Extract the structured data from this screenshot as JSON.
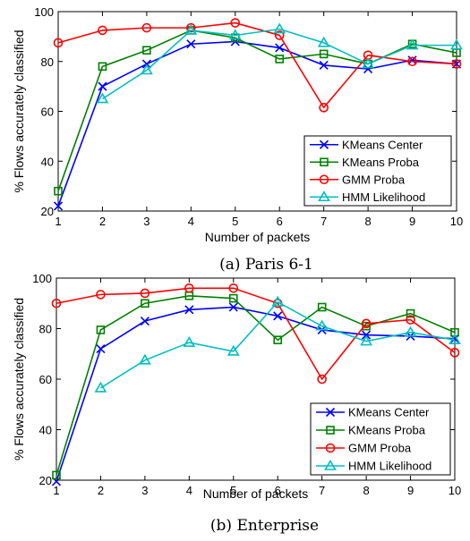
{
  "chart_data": [
    {
      "type": "line",
      "caption": "(a) Paris 6-1",
      "xlabel": "Number of packets",
      "ylabel": "% Flows accurately classified",
      "xlim": [
        1,
        10
      ],
      "ylim": [
        20,
        100
      ],
      "xticks": [
        1,
        2,
        3,
        4,
        5,
        6,
        7,
        8,
        9,
        10
      ],
      "yticks": [
        20,
        40,
        60,
        80,
        100
      ],
      "legend_position": "bottom-right",
      "series": [
        {
          "name": "KMeans Center",
          "color": "#0000ff",
          "marker": "x",
          "x": [
            1,
            2,
            3,
            4,
            5,
            6,
            7,
            8,
            9,
            10
          ],
          "values": [
            22,
            70,
            79,
            87,
            88,
            85.5,
            78.5,
            77,
            80.5,
            79
          ]
        },
        {
          "name": "KMeans Proba",
          "color": "#008000",
          "marker": "square",
          "x": [
            1,
            2,
            3,
            4,
            5,
            6,
            7,
            8,
            9,
            10
          ],
          "values": [
            28,
            78,
            84.5,
            92.5,
            89.5,
            81,
            83,
            79,
            87,
            83.5
          ]
        },
        {
          "name": "GMM Proba",
          "color": "#ff0000",
          "marker": "circle",
          "x": [
            1,
            2,
            3,
            4,
            5,
            6,
            7,
            8,
            9,
            10
          ],
          "values": [
            87.5,
            92.5,
            93.5,
            93.5,
            95.5,
            90.5,
            61.5,
            82.5,
            80,
            79
          ]
        },
        {
          "name": "HMM Likelihood",
          "color": "#00bfbf",
          "marker": "triangle",
          "x": [
            2,
            3,
            4,
            5,
            6,
            7,
            8,
            9,
            10
          ],
          "values": [
            65,
            76.5,
            92.5,
            90.5,
            93,
            87.5,
            79,
            86.5,
            86.5
          ]
        }
      ]
    },
    {
      "type": "line",
      "caption": "(b) Enterprise",
      "xlabel": "Number of packets",
      "ylabel": "% Flows accurately classified",
      "xlim": [
        1,
        10
      ],
      "ylim": [
        20,
        100
      ],
      "xticks": [
        1,
        2,
        3,
        4,
        5,
        6,
        7,
        8,
        9,
        10
      ],
      "yticks": [
        20,
        40,
        60,
        80,
        100
      ],
      "legend_position": "bottom-right",
      "series": [
        {
          "name": "KMeans Center",
          "color": "#0000ff",
          "marker": "x",
          "x": [
            1,
            2,
            3,
            4,
            5,
            6,
            7,
            8,
            9,
            10
          ],
          "values": [
            19.5,
            72,
            83,
            87.5,
            88.5,
            85,
            79.5,
            77.5,
            77,
            76
          ]
        },
        {
          "name": "KMeans Proba",
          "color": "#008000",
          "marker": "square",
          "x": [
            1,
            2,
            3,
            4,
            5,
            6,
            7,
            8,
            9,
            10
          ],
          "values": [
            22,
            79.5,
            90,
            93,
            92,
            75.5,
            88.5,
            81,
            86,
            78.5
          ]
        },
        {
          "name": "GMM Proba",
          "color": "#ff0000",
          "marker": "circle",
          "x": [
            1,
            2,
            3,
            4,
            5,
            6,
            7,
            8,
            9,
            10
          ],
          "values": [
            90,
            93.5,
            94,
            96,
            96,
            90,
            60,
            82,
            83.5,
            70.5
          ]
        },
        {
          "name": "HMM Likelihood",
          "color": "#00bfbf",
          "marker": "triangle",
          "x": [
            2,
            3,
            4,
            5,
            6,
            7,
            8,
            9,
            10
          ],
          "values": [
            56.5,
            67.5,
            74.5,
            71,
            90.5,
            81,
            75,
            78.5,
            75.5
          ]
        }
      ]
    }
  ]
}
